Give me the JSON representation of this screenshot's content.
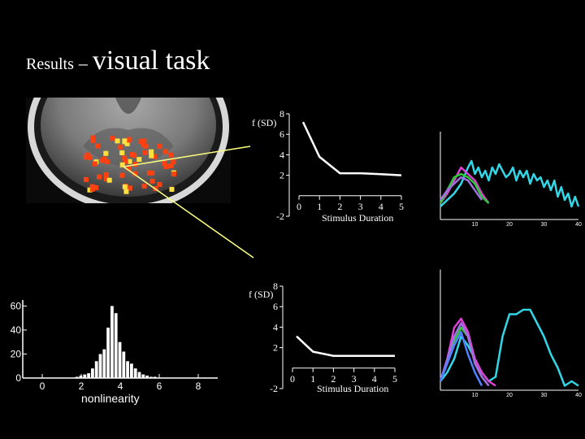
{
  "title": {
    "part1": "Results",
    "dash": "–",
    "part2": "visual task"
  },
  "colors": {
    "background": "#000000",
    "axis": "#ffffff",
    "series_cyan": "#33d6e6",
    "series_magenta": "#e040d8",
    "series_green": "#2ec83a",
    "series_purple": "#a070e0",
    "series_blue": "#5080ff",
    "activation_red": "#ff4010",
    "activation_yellow": "#ffe040",
    "pointer_line": "#ffff60"
  },
  "brain_image": {
    "depicts": "axial MRI brain slice with red/yellow activation overlay"
  },
  "chart_data": [
    {
      "id": "nonlinearity-top",
      "type": "line",
      "ylabel": "f (SD)",
      "xlabel": "Stimulus Duration",
      "xticks": [
        "0",
        "1",
        "2",
        "3",
        "4",
        "5"
      ],
      "yticks": [
        "-2",
        "2",
        "4",
        "6",
        "8"
      ],
      "xlim": [
        0,
        5
      ],
      "ylim": [
        -2,
        8
      ],
      "x": [
        0.2,
        1,
        2,
        3,
        4,
        5
      ],
      "y": [
        7.2,
        3.8,
        2.2,
        2.2,
        2.1,
        2.0
      ]
    },
    {
      "id": "nonlinearity-bottom",
      "type": "line",
      "ylabel": "f (SD)",
      "xlabel": "Stimulus Duration",
      "xticks": [
        "0",
        "1",
        "2",
        "3",
        "4",
        "5"
      ],
      "yticks": [
        "-2",
        "2",
        "4",
        "6",
        "8"
      ],
      "xlim": [
        0,
        5
      ],
      "ylim": [
        -2,
        8
      ],
      "x": [
        0.2,
        1,
        2,
        3,
        4,
        5
      ],
      "y": [
        3.1,
        1.6,
        1.2,
        1.2,
        1.2,
        1.2
      ]
    },
    {
      "id": "histogram",
      "type": "bar",
      "xlabel": "nonlinearity",
      "xticks": [
        "0",
        "2",
        "4",
        "6",
        "8"
      ],
      "yticks": [
        "0",
        "20",
        "40",
        "60"
      ],
      "xlim": [
        -1,
        9
      ],
      "ylim": [
        0,
        65
      ],
      "bin_width": 0.2,
      "x": [
        1.8,
        2.0,
        2.2,
        2.4,
        2.6,
        2.8,
        3.0,
        3.2,
        3.4,
        3.6,
        3.8,
        4.0,
        4.2,
        4.4,
        4.6,
        4.8,
        5.0,
        5.2,
        5.4,
        5.6,
        5.8
      ],
      "values": [
        1,
        2,
        3,
        4,
        8,
        14,
        20,
        24,
        42,
        60,
        54,
        30,
        22,
        14,
        12,
        8,
        5,
        3,
        2,
        1,
        1
      ]
    },
    {
      "id": "timecourse-top",
      "type": "line",
      "xticks": [
        "10",
        "20",
        "30",
        "40"
      ],
      "xlim": [
        0,
        40
      ],
      "ylim": [
        -1,
        1
      ],
      "series": [
        {
          "color": "cyan",
          "x": [
            0,
            2,
            4,
            6,
            8,
            9,
            10,
            11,
            12,
            13,
            14,
            15,
            16,
            17,
            18,
            19,
            20,
            21,
            22,
            23,
            24,
            25,
            26,
            27,
            28,
            29,
            30,
            31,
            32,
            33,
            34,
            35,
            36,
            37,
            38,
            39,
            40
          ],
          "y": [
            -0.6,
            -0.4,
            -0.2,
            0.1,
            0.6,
            0.8,
            0.4,
            0.6,
            0.3,
            0.5,
            0.2,
            0.6,
            0.4,
            0.7,
            0.5,
            0.3,
            0.4,
            0.6,
            0.2,
            0.5,
            0.3,
            0.5,
            0.1,
            0.4,
            0.2,
            0.3,
            0.0,
            0.2,
            -0.1,
            0.2,
            -0.3,
            0.0,
            -0.4,
            -0.2,
            -0.6,
            -0.3,
            -0.6
          ]
        },
        {
          "color": "magenta",
          "x": [
            0,
            2,
            4,
            6,
            8,
            10,
            12,
            14
          ],
          "y": [
            -0.5,
            -0.2,
            0.2,
            0.6,
            0.4,
            0.2,
            -0.2,
            -0.5
          ]
        },
        {
          "color": "green",
          "x": [
            0,
            2,
            4,
            6,
            8,
            10,
            12,
            14
          ],
          "y": [
            -0.5,
            -0.1,
            0.3,
            0.4,
            0.3,
            0.1,
            -0.3,
            -0.5
          ]
        },
        {
          "color": "purple",
          "x": [
            0,
            2,
            4,
            6,
            8,
            10,
            12
          ],
          "y": [
            -0.4,
            -0.1,
            0.1,
            0.3,
            0.2,
            -0.1,
            -0.4
          ]
        }
      ]
    },
    {
      "id": "timecourse-bottom",
      "type": "line",
      "xticks": [
        "10",
        "20",
        "30",
        "40"
      ],
      "xlim": [
        0,
        40
      ],
      "ylim": [
        -1,
        1
      ],
      "series": [
        {
          "color": "cyan",
          "x": [
            0,
            2,
            4,
            6,
            8,
            10,
            12,
            14,
            16,
            18,
            20,
            22,
            24,
            26,
            28,
            30,
            32,
            34,
            36,
            38,
            40
          ],
          "y": [
            -0.8,
            -0.6,
            -0.3,
            0.2,
            0.0,
            -0.3,
            -0.6,
            -0.8,
            -0.7,
            0.2,
            0.7,
            0.7,
            0.8,
            0.8,
            0.5,
            0.2,
            -0.2,
            -0.5,
            -0.9,
            -0.8,
            -0.9
          ]
        },
        {
          "color": "magenta",
          "x": [
            0,
            2,
            4,
            6,
            8,
            10,
            12,
            14,
            16
          ],
          "y": [
            -0.8,
            -0.3,
            0.4,
            0.6,
            0.3,
            -0.3,
            -0.6,
            -0.8,
            -0.9
          ]
        },
        {
          "color": "green",
          "x": [
            0,
            2,
            4,
            6,
            8,
            10,
            12,
            14
          ],
          "y": [
            -0.8,
            -0.4,
            0.1,
            0.4,
            0.2,
            -0.4,
            -0.7,
            -0.9
          ]
        },
        {
          "color": "purple",
          "x": [
            0,
            2,
            4,
            6,
            8,
            10,
            12,
            14
          ],
          "y": [
            -0.8,
            -0.3,
            0.2,
            0.5,
            0.2,
            -0.4,
            -0.7,
            -0.9
          ]
        },
        {
          "color": "blue",
          "x": [
            0,
            2,
            4,
            6,
            8,
            10,
            12
          ],
          "y": [
            -0.8,
            -0.4,
            0.0,
            0.3,
            -0.2,
            -0.6,
            -0.9
          ]
        }
      ]
    }
  ]
}
